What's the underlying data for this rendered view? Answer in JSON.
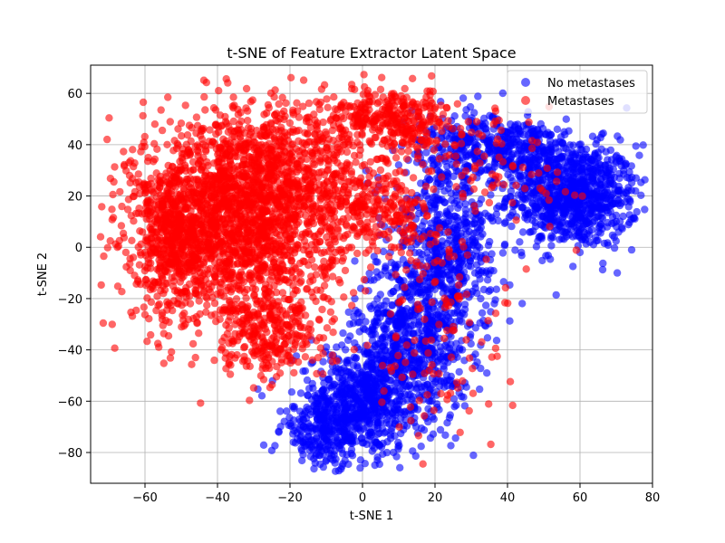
{
  "chart_data": {
    "type": "scatter",
    "title": "t-SNE of Feature Extractor Latent Space",
    "xlabel": "t-SNE 1",
    "ylabel": "t-SNE 2",
    "xlim": [
      -75,
      80
    ],
    "ylim": [
      -92,
      71
    ],
    "xticks": [
      -60,
      -40,
      -20,
      0,
      20,
      40,
      60,
      80
    ],
    "yticks": [
      -80,
      -60,
      -40,
      -20,
      0,
      20,
      40,
      60
    ],
    "grid": true,
    "legend_position": "top-right",
    "series": [
      {
        "name": "No metastases",
        "color": "#0000ff",
        "alpha": 0.6,
        "clusters": [
          {
            "cx": 58,
            "cy": 20,
            "sx": 9,
            "sy": 10,
            "n": 900
          },
          {
            "cx": 42,
            "cy": 38,
            "sx": 10,
            "sy": 6,
            "n": 300
          },
          {
            "cx": 30,
            "cy": 42,
            "sx": 8,
            "sy": 7,
            "n": 150
          },
          {
            "cx": 14,
            "cy": -35,
            "sx": 8,
            "sy": 16,
            "n": 700
          },
          {
            "cx": 0,
            "cy": -60,
            "sx": 9,
            "sy": 10,
            "n": 600
          },
          {
            "cx": -10,
            "cy": -72,
            "sx": 6,
            "sy": 7,
            "n": 250
          },
          {
            "cx": 22,
            "cy": 10,
            "sx": 7,
            "sy": 12,
            "n": 300
          },
          {
            "cx": 25,
            "cy": -10,
            "sx": 6,
            "sy": 9,
            "n": 200
          }
        ]
      },
      {
        "name": "Metastases",
        "color": "#ff0000",
        "alpha": 0.6,
        "clusters": [
          {
            "cx": -35,
            "cy": 10,
            "sx": 14,
            "sy": 20,
            "n": 1900
          },
          {
            "cx": -52,
            "cy": 5,
            "sx": 6,
            "sy": 14,
            "n": 400
          },
          {
            "cx": -20,
            "cy": 30,
            "sx": 12,
            "sy": 14,
            "n": 500
          },
          {
            "cx": 8,
            "cy": 50,
            "sx": 9,
            "sy": 6,
            "n": 350
          },
          {
            "cx": -25,
            "cy": -35,
            "sx": 7,
            "sy": 8,
            "n": 250
          },
          {
            "cx": 5,
            "cy": 15,
            "sx": 8,
            "sy": 10,
            "n": 250
          },
          {
            "cx": 20,
            "cy": -30,
            "sx": 10,
            "sy": 25,
            "n": 120
          },
          {
            "cx": 40,
            "cy": 30,
            "sx": 10,
            "sy": 10,
            "n": 60
          }
        ]
      }
    ]
  }
}
